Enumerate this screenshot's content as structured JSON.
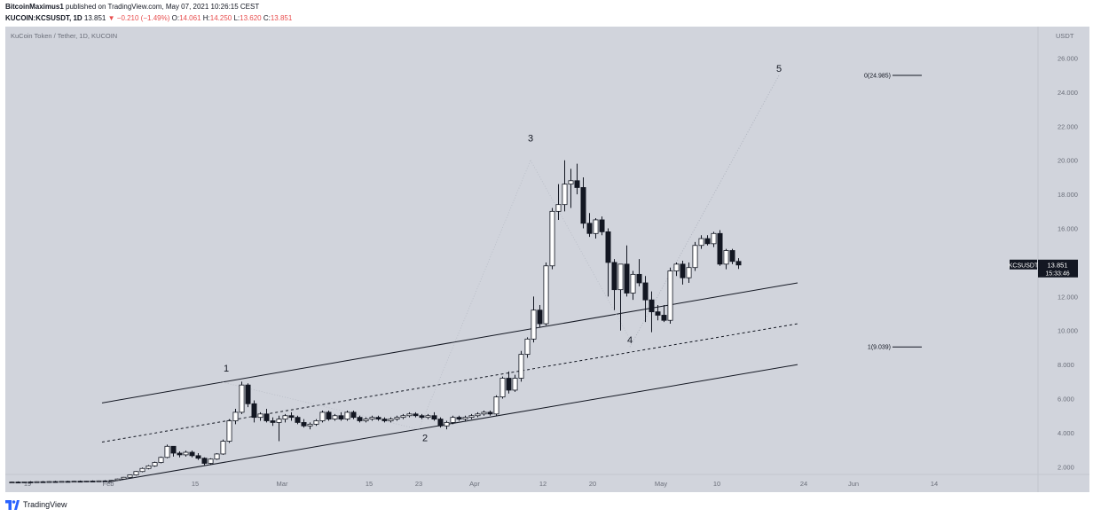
{
  "header": {
    "author": "BitcoinMaximus1",
    "published_text": "published on TradingView.com, May 07, 2021 10:26:15 CEST",
    "symbol": "KUCOIN:KCSUSDT, 1D",
    "last": "13.851",
    "change_arrow": "▼",
    "change": "−0.210 (−1.49%)",
    "o_label": "O:",
    "o_value": "14.061",
    "h_label": "H:",
    "h_value": "14.250",
    "l_label": "L:",
    "l_value": "13.620",
    "c_label": "C:",
    "c_value": "13.851"
  },
  "footer": {
    "brand": "TradingView"
  },
  "chart_data": {
    "type": "candlestick",
    "title": "KuCoin Token / Tether, 1D, KUCOIN",
    "currency_label": "USDT",
    "y_ticks": [
      2,
      4,
      6,
      8,
      10,
      12,
      14,
      16,
      18,
      20,
      22,
      24,
      26
    ],
    "y_tick_labels": [
      "2.000",
      "4.000",
      "6.000",
      "8.000",
      "10.000",
      "12.000",
      "14.000",
      "16.000",
      "18.000",
      "20.000",
      "22.000",
      "24.000",
      "26.000"
    ],
    "ylim": [
      0.2,
      27.2
    ],
    "x_range": [
      "2021-01-16",
      "2021-06-19"
    ],
    "x_ticks": [
      {
        "date": "2021-01-19",
        "label": "19"
      },
      {
        "date": "2021-02-01",
        "label": "Feb"
      },
      {
        "date": "2021-02-15",
        "label": "15"
      },
      {
        "date": "2021-03-01",
        "label": "Mar"
      },
      {
        "date": "2021-03-15",
        "label": "15"
      },
      {
        "date": "2021-03-23",
        "label": "23"
      },
      {
        "date": "2021-04-01",
        "label": "Apr"
      },
      {
        "date": "2021-04-12",
        "label": "12"
      },
      {
        "date": "2021-04-20",
        "label": "20"
      },
      {
        "date": "2021-05-01",
        "label": "May"
      },
      {
        "date": "2021-05-10",
        "label": "10"
      },
      {
        "date": "2021-05-24",
        "label": "24"
      },
      {
        "date": "2021-06-01",
        "label": "Jun"
      },
      {
        "date": "2021-06-14",
        "label": "14"
      }
    ],
    "start_date": "2021-01-16",
    "ohlc": [
      [
        1.08,
        1.12,
        1.05,
        1.1
      ],
      [
        1.1,
        1.14,
        1.06,
        1.09
      ],
      [
        1.09,
        1.13,
        1.05,
        1.11
      ],
      [
        1.11,
        1.15,
        1.07,
        1.1
      ],
      [
        1.1,
        1.14,
        1.06,
        1.12
      ],
      [
        1.12,
        1.16,
        1.08,
        1.11
      ],
      [
        1.11,
        1.15,
        1.07,
        1.13
      ],
      [
        1.13,
        1.17,
        1.09,
        1.12
      ],
      [
        1.12,
        1.16,
        1.08,
        1.14
      ],
      [
        1.14,
        1.18,
        1.1,
        1.13
      ],
      [
        1.13,
        1.17,
        1.09,
        1.15
      ],
      [
        1.15,
        1.19,
        1.11,
        1.14
      ],
      [
        1.14,
        1.18,
        1.1,
        1.16
      ],
      [
        1.16,
        1.2,
        1.12,
        1.15
      ],
      [
        1.15,
        1.19,
        1.11,
        1.17
      ],
      [
        1.17,
        1.21,
        1.13,
        1.16
      ],
      [
        1.16,
        1.22,
        1.12,
        1.2
      ],
      [
        1.2,
        1.3,
        1.18,
        1.28
      ],
      [
        1.28,
        1.4,
        1.25,
        1.38
      ],
      [
        1.38,
        1.55,
        1.35,
        1.52
      ],
      [
        1.52,
        1.75,
        1.48,
        1.72
      ],
      [
        1.72,
        1.95,
        1.68,
        1.9
      ],
      [
        1.9,
        2.1,
        1.85,
        2.05
      ],
      [
        2.05,
        2.3,
        2.0,
        2.25
      ],
      [
        2.25,
        2.6,
        2.2,
        2.55
      ],
      [
        2.55,
        3.3,
        2.5,
        3.2
      ],
      [
        3.2,
        3.2,
        2.6,
        2.8
      ],
      [
        2.8,
        2.9,
        2.55,
        2.7
      ],
      [
        2.7,
        2.95,
        2.6,
        2.85
      ],
      [
        2.85,
        2.95,
        2.55,
        2.65
      ],
      [
        2.65,
        2.8,
        2.4,
        2.5
      ],
      [
        2.5,
        2.55,
        2.1,
        2.2
      ],
      [
        2.2,
        2.5,
        2.15,
        2.45
      ],
      [
        2.45,
        2.8,
        2.4,
        2.75
      ],
      [
        2.75,
        3.6,
        2.7,
        3.5
      ],
      [
        3.5,
        4.8,
        3.4,
        4.7
      ],
      [
        4.7,
        5.4,
        4.5,
        5.2
      ],
      [
        5.2,
        7.0,
        5.1,
        6.8
      ],
      [
        6.8,
        6.9,
        5.5,
        5.7
      ],
      [
        5.7,
        5.9,
        4.6,
        4.9
      ],
      [
        4.9,
        5.2,
        4.7,
        5.1
      ],
      [
        5.1,
        5.4,
        4.6,
        4.7
      ],
      [
        4.7,
        4.9,
        4.4,
        4.6
      ],
      [
        4.6,
        5.0,
        3.5,
        4.8
      ],
      [
        4.8,
        5.1,
        4.6,
        5.0
      ],
      [
        5.0,
        5.2,
        4.7,
        4.9
      ],
      [
        4.9,
        5.0,
        4.5,
        4.6
      ],
      [
        4.6,
        4.8,
        4.3,
        4.4
      ],
      [
        4.4,
        4.6,
        4.2,
        4.5
      ],
      [
        4.5,
        4.8,
        4.4,
        4.7
      ],
      [
        4.7,
        5.3,
        4.6,
        5.2
      ],
      [
        5.2,
        5.3,
        4.7,
        4.8
      ],
      [
        4.8,
        5.1,
        4.7,
        5.0
      ],
      [
        5.0,
        5.2,
        4.7,
        4.8
      ],
      [
        4.8,
        5.3,
        4.7,
        5.2
      ],
      [
        5.2,
        5.3,
        4.8,
        4.9
      ],
      [
        4.9,
        5.0,
        4.6,
        4.7
      ],
      [
        4.7,
        4.9,
        4.6,
        4.8
      ],
      [
        4.8,
        5.0,
        4.7,
        4.9
      ],
      [
        4.9,
        5.0,
        4.7,
        4.8
      ],
      [
        4.8,
        4.9,
        4.6,
        4.7
      ],
      [
        4.7,
        4.9,
        4.6,
        4.8
      ],
      [
        4.8,
        5.0,
        4.7,
        4.9
      ],
      [
        4.9,
        5.1,
        4.8,
        5.0
      ],
      [
        5.0,
        5.2,
        4.9,
        5.1
      ],
      [
        5.1,
        5.2,
        4.9,
        5.0
      ],
      [
        5.0,
        5.1,
        4.8,
        4.9
      ],
      [
        4.9,
        5.1,
        4.8,
        5.0
      ],
      [
        5.0,
        5.2,
        4.7,
        4.8
      ],
      [
        4.8,
        4.9,
        4.3,
        4.4
      ],
      [
        4.4,
        4.7,
        4.2,
        4.6
      ],
      [
        4.6,
        5.0,
        4.5,
        4.9
      ],
      [
        4.9,
        5.0,
        4.7,
        4.8
      ],
      [
        4.8,
        5.0,
        4.7,
        4.9
      ],
      [
        4.9,
        5.1,
        4.8,
        5.0
      ],
      [
        5.0,
        5.2,
        4.9,
        5.1
      ],
      [
        5.1,
        5.3,
        5.0,
        5.2
      ],
      [
        5.2,
        5.3,
        5.0,
        5.1
      ],
      [
        5.1,
        6.2,
        5.0,
        6.1
      ],
      [
        6.1,
        7.3,
        6.0,
        7.2
      ],
      [
        7.2,
        7.6,
        6.3,
        6.5
      ],
      [
        6.5,
        7.4,
        6.4,
        7.2
      ],
      [
        7.2,
        8.8,
        7.0,
        8.6
      ],
      [
        8.6,
        9.6,
        8.4,
        9.5
      ],
      [
        9.5,
        12.0,
        9.3,
        11.2
      ],
      [
        11.2,
        11.5,
        10.2,
        10.4
      ],
      [
        10.4,
        14.0,
        10.3,
        13.8
      ],
      [
        13.8,
        17.2,
        13.6,
        17.0
      ],
      [
        17.0,
        18.6,
        16.5,
        17.4
      ],
      [
        17.4,
        20.0,
        17.0,
        18.6
      ],
      [
        18.6,
        19.5,
        17.2,
        18.8
      ],
      [
        18.8,
        19.8,
        18.0,
        18.4
      ],
      [
        18.4,
        19.0,
        16.0,
        16.3
      ],
      [
        16.3,
        16.9,
        15.5,
        15.7
      ],
      [
        15.7,
        16.6,
        15.4,
        16.5
      ],
      [
        16.5,
        16.7,
        15.6,
        15.8
      ],
      [
        15.8,
        16.0,
        12.0,
        14.0
      ],
      [
        14.0,
        14.2,
        11.2,
        12.4
      ],
      [
        12.4,
        13.8,
        10.0,
        13.9
      ],
      [
        13.9,
        15.0,
        12.0,
        12.2
      ],
      [
        12.2,
        13.5,
        11.8,
        13.3
      ],
      [
        13.3,
        14.2,
        12.6,
        12.8
      ],
      [
        12.8,
        13.2,
        10.5,
        11.8
      ],
      [
        11.8,
        12.3,
        9.9,
        11.1
      ],
      [
        11.1,
        11.5,
        10.6,
        10.9
      ],
      [
        10.9,
        11.5,
        10.5,
        10.6
      ],
      [
        10.6,
        13.7,
        10.4,
        13.5
      ],
      [
        13.5,
        14.0,
        13.2,
        13.9
      ],
      [
        13.9,
        14.1,
        12.7,
        13.1
      ],
      [
        13.1,
        14.0,
        12.8,
        13.7
      ],
      [
        13.7,
        15.2,
        13.5,
        15.0
      ],
      [
        15.0,
        15.6,
        14.8,
        15.4
      ],
      [
        15.4,
        15.6,
        15.0,
        15.1
      ],
      [
        15.1,
        15.8,
        14.9,
        15.7
      ],
      [
        15.7,
        15.9,
        13.8,
        13.9
      ],
      [
        13.9,
        14.8,
        13.6,
        14.7
      ],
      [
        14.7,
        14.8,
        13.9,
        14.06
      ],
      [
        14.061,
        14.25,
        13.62,
        13.851
      ]
    ],
    "channel": {
      "upper": {
        "from": [
          "2021-01-31",
          5.75
        ],
        "to": [
          "2021-05-23",
          12.8
        ]
      },
      "middle": {
        "from": [
          "2021-01-31",
          3.45
        ],
        "to": [
          "2021-05-23",
          10.4
        ]
      },
      "lower": {
        "from": [
          "2021-02-01",
          1.1
        ],
        "to": [
          "2021-05-23",
          8.0
        ]
      }
    },
    "fib_levels": [
      {
        "label": "0(24.985)",
        "value": 24.985
      },
      {
        "label": "1(9.039)",
        "value": 9.039
      }
    ],
    "wave_labels": [
      {
        "text": "1",
        "date": "2021-02-20",
        "price": 7.6
      },
      {
        "text": "2",
        "date": "2021-03-24",
        "price": 3.5
      },
      {
        "text": "3",
        "date": "2021-04-10",
        "price": 21.1
      },
      {
        "text": "4",
        "date": "2021-04-26",
        "price": 9.25
      },
      {
        "text": "5",
        "date": "2021-05-20",
        "price": 25.2
      }
    ],
    "last_price_label": "KCSUSDT",
    "last_price": "13.851",
    "countdown": "15:33:46",
    "colors": {
      "background": "#d1d4dc",
      "up_candle": "#ffffff",
      "down_candle": "#131722",
      "axis_text": "#6b6f7a",
      "price_label_bg": "#131722"
    }
  }
}
